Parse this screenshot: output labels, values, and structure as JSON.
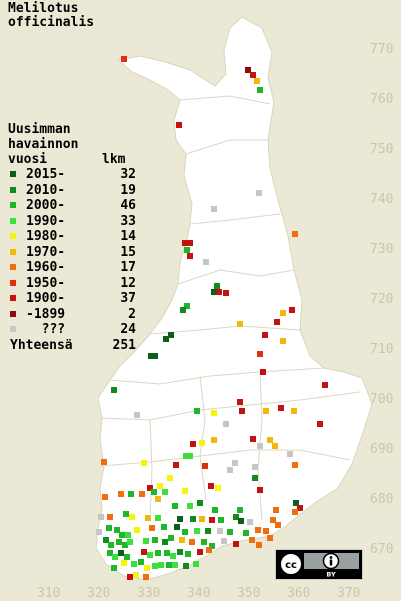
{
  "species": {
    "line1": "Melilotus",
    "line2": "officinalis"
  },
  "legend": {
    "title_line1": "Uusimman",
    "title_line2": "havainnon",
    "col_year": "vuosi",
    "col_count": "lkm",
    "rows": [
      {
        "label": "2015-",
        "count": "32",
        "color": "#0b5e1c"
      },
      {
        "label": "2010-",
        "count": "19",
        "color": "#138a1e"
      },
      {
        "label": "2000-",
        "count": "46",
        "color": "#1eb62a"
      },
      {
        "label": "1990-",
        "count": "33",
        "color": "#3ddf3d"
      },
      {
        "label": "1980-",
        "count": "14",
        "color": "#f5f50a"
      },
      {
        "label": "1970-",
        "count": "15",
        "color": "#f2b80c"
      },
      {
        "label": "1960-",
        "count": "17",
        "color": "#f06e10"
      },
      {
        "label": "1950-",
        "count": "12",
        "color": "#dd3010"
      },
      {
        "label": "1900-",
        "count": "37",
        "color": "#c41212"
      },
      {
        "label": "-1899",
        "count": "2",
        "color": "#8a0e0e"
      },
      {
        "label": "  ???",
        "count": "24",
        "color": "#c6c6c6"
      }
    ],
    "total_label": "Yhteensä",
    "total_count": "251"
  },
  "grid": {
    "easting_labels": [
      "310",
      "320",
      "330",
      "340",
      "350",
      "360",
      "370"
    ],
    "northing_labels": [
      "770",
      "760",
      "750",
      "740",
      "730",
      "720",
      "710",
      "700",
      "690",
      "680",
      "670"
    ]
  },
  "colors": {
    "background": "#ebe9d5",
    "land": "#ffffff",
    "border_line": "#d7d3b8",
    "grid_label": "#c9c6ad"
  },
  "license_badge": {
    "icons": [
      "cc-icon",
      "attribution-icon"
    ],
    "text": "BY"
  }
}
